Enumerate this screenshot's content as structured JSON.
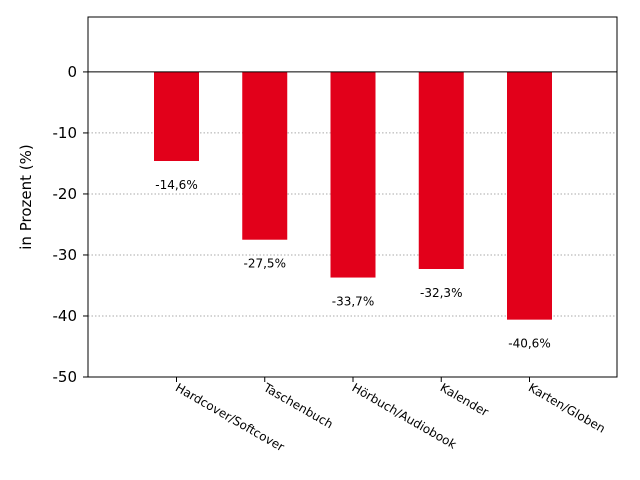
{
  "chart_data": {
    "type": "bar",
    "categories": [
      "Hardcover/Softcover",
      "Taschenbuch",
      "Hörbuch/Audiobook",
      "Kalender",
      "Karten/Globen"
    ],
    "values": [
      -14.6,
      -27.5,
      -33.7,
      -32.3,
      -40.6
    ],
    "data_labels": [
      "-14,6%",
      "-27,5%",
      "-33,7%",
      "-32,3%",
      "-40,6%"
    ],
    "ylabel": "in Prozent (%)",
    "xlabel": "",
    "ylim": [
      -50,
      9
    ],
    "yticks": [
      0,
      -10,
      -20,
      -30,
      -40,
      -50
    ],
    "ytick_labels": [
      "0",
      "-10",
      "-20",
      "-30",
      "-40",
      "-50"
    ],
    "grid": "horizontal dotted",
    "bar_color": "#e2001a",
    "legend": "none"
  }
}
